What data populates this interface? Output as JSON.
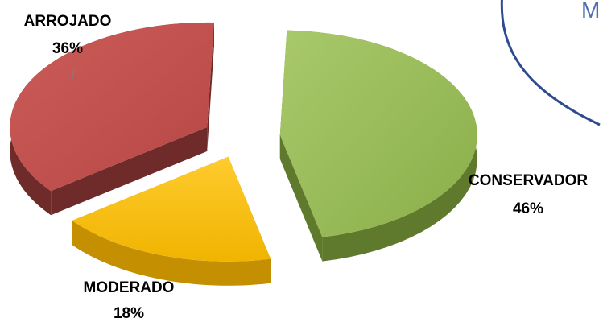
{
  "chart_data": {
    "type": "pie",
    "categories": [
      "CONSERVADOR",
      "MODERADO",
      "ARROJADO"
    ],
    "values": [
      46,
      18,
      36
    ],
    "value_labels": [
      "46%",
      "18%",
      "36%"
    ],
    "colors": [
      "#9bbb59",
      "#ffc000",
      "#c0504d"
    ],
    "title": "",
    "legend": "none",
    "style": "3d-exploded"
  },
  "corner_shape": {
    "text": "M",
    "border_color": "#2f4b8f",
    "text_color": "#4f6fb0"
  }
}
